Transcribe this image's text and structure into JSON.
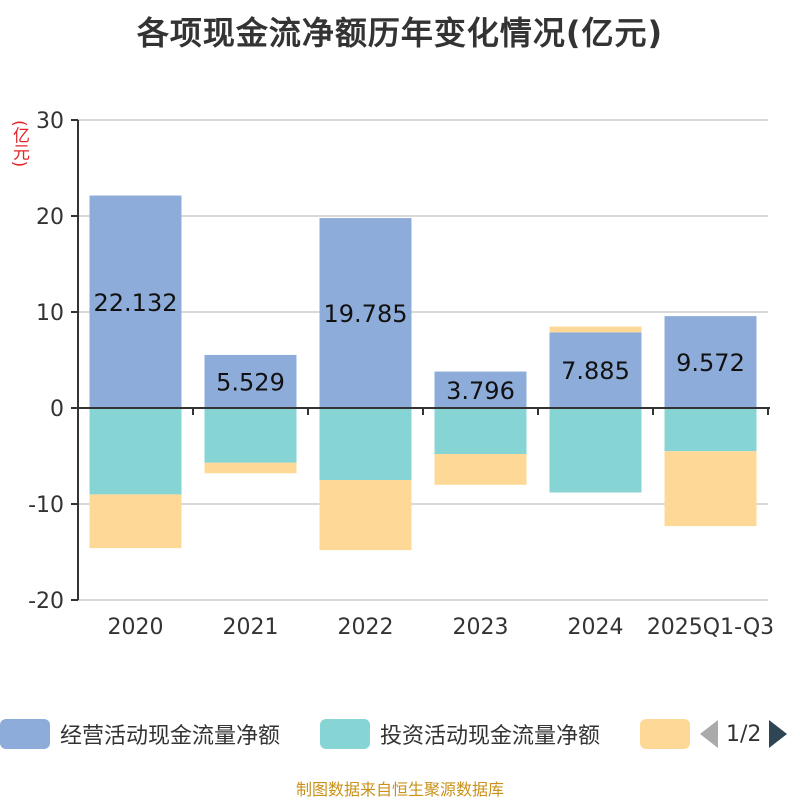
{
  "title": "各项现金流净额历年变化情况(亿元)",
  "unit_label": "(亿元)",
  "footer": "制图数据来自恒生聚源数据库",
  "pager": {
    "text": "1/2"
  },
  "colors": {
    "operating": "#8eacd9",
    "investing": "#86d4d4",
    "financing": "#fdd897",
    "axis": "#333333",
    "grid": "#cccccc"
  },
  "chart_data": {
    "type": "bar",
    "stacked": true,
    "title": "各项现金流净额历年变化情况(亿元)",
    "ylabel": "(亿元)",
    "ylim": [
      -20,
      30
    ],
    "yticks": [
      30,
      20,
      10,
      0,
      -10,
      -20
    ],
    "categories": [
      "2020",
      "2021",
      "2022",
      "2023",
      "2024",
      "2025Q1-Q3"
    ],
    "series": [
      {
        "name": "经营活动现金流量净额",
        "values": [
          22.132,
          5.529,
          19.785,
          3.796,
          7.885,
          9.572
        ],
        "show_labels": true
      },
      {
        "name": "投资活动现金流量净额",
        "values": [
          -9.0,
          -5.7,
          -7.5,
          -4.8,
          -8.8,
          -4.5
        ],
        "show_labels": false
      },
      {
        "name": "",
        "values": [
          -5.6,
          -1.1,
          -7.3,
          -3.2,
          0.6,
          -7.8
        ],
        "show_labels": false
      }
    ],
    "legend": {
      "position": "bottom",
      "items": [
        "经营活动现金流量净额",
        "投资活动现金流量净额",
        ""
      ]
    }
  }
}
